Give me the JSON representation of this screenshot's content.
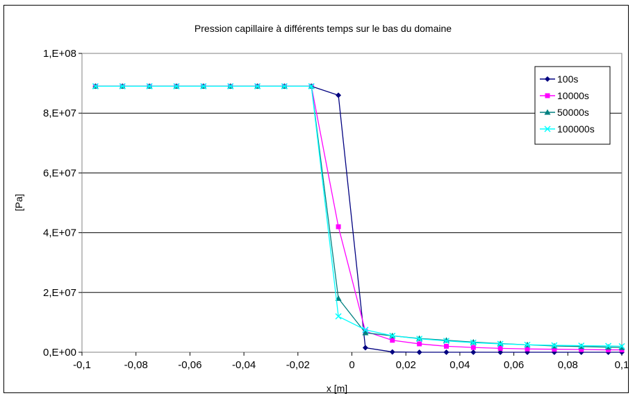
{
  "chart_data": {
    "type": "line",
    "title": "Pression capillaire à différents temps sur le bas du domaine",
    "xlabel": "x [m]",
    "ylabel": "[Pa]",
    "xlim": [
      -0.1,
      0.1
    ],
    "ylim": [
      0,
      100000000
    ],
    "x_ticks": [
      -0.1,
      -0.08,
      -0.06,
      -0.04,
      -0.02,
      0,
      0.02,
      0.04,
      0.06,
      0.08,
      0.1
    ],
    "x_tick_labels": [
      "-0,1",
      "-0,08",
      "-0,06",
      "-0,04",
      "-0,02",
      "0",
      "0,02",
      "0,04",
      "0,06",
      "0,08",
      "0,1"
    ],
    "y_ticks": [
      0,
      20000000,
      40000000,
      60000000,
      80000000,
      100000000
    ],
    "y_tick_labels": [
      "0,E+00",
      "2,E+07",
      "4,E+07",
      "6,E+07",
      "8,E+07",
      "1,E+08"
    ],
    "grid": "horizontal",
    "legend_position": "top-right",
    "x": [
      -0.095,
      -0.085,
      -0.075,
      -0.065,
      -0.055,
      -0.045,
      -0.035,
      -0.025,
      -0.015,
      -0.005,
      0.005,
      0.015,
      0.025,
      0.035,
      0.045,
      0.055,
      0.065,
      0.075,
      0.085,
      0.095,
      0.1
    ],
    "series": [
      {
        "name": "100s",
        "color": "#000080",
        "marker": "diamond",
        "values": [
          89000000,
          89000000,
          89000000,
          89000000,
          89000000,
          89000000,
          89000000,
          89000000,
          89000000,
          86000000,
          1500000,
          100000,
          0,
          0,
          0,
          0,
          0,
          0,
          0,
          0,
          0
        ]
      },
      {
        "name": "10000s",
        "color": "#ff00ff",
        "marker": "square",
        "values": [
          89000000,
          89000000,
          89000000,
          89000000,
          89000000,
          89000000,
          89000000,
          89000000,
          89000000,
          42000000,
          7000000,
          4000000,
          2800000,
          2000000,
          1600000,
          1300000,
          1100000,
          1000000,
          900000,
          800000,
          800000
        ]
      },
      {
        "name": "50000s",
        "color": "#008080",
        "marker": "triangle",
        "values": [
          89000000,
          89000000,
          89000000,
          89000000,
          89000000,
          89000000,
          89000000,
          89000000,
          89000000,
          18000000,
          6500000,
          5500000,
          4600000,
          4000000,
          3400000,
          2900000,
          2500000,
          2100000,
          1900000,
          1700000,
          1600000
        ]
      },
      {
        "name": "100000s",
        "color": "#00ffff",
        "marker": "x",
        "values": [
          89000000,
          89000000,
          89000000,
          89000000,
          89000000,
          89000000,
          89000000,
          89000000,
          89000000,
          12000000,
          7500000,
          5500000,
          4500000,
          3800000,
          3200000,
          2800000,
          2500000,
          2300000,
          2200000,
          2100000,
          2000000
        ]
      }
    ]
  }
}
